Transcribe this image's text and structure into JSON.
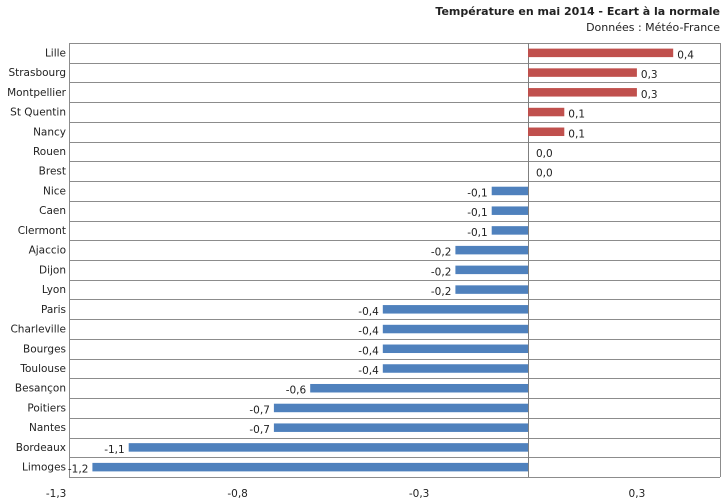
{
  "chart_data": {
    "type": "bar",
    "orientation": "horizontal",
    "title": "Température en mai 2014 - Ecart à la normale",
    "subtitle": "Données : Météo-France",
    "categories": [
      "Lille",
      "Strasbourg",
      "Montpellier",
      "St Quentin",
      "Nancy",
      "Rouen",
      "Brest",
      "Nice",
      "Caen",
      "Clermont",
      "Ajaccio",
      "Dijon",
      "Lyon",
      "Paris",
      "Charleville",
      "Bourges",
      "Toulouse",
      "Besançon",
      "Poitiers",
      "Nantes",
      "Bordeaux",
      "Limoges"
    ],
    "values": [
      0.4,
      0.3,
      0.3,
      0.1,
      0.1,
      0.0,
      0.0,
      -0.1,
      -0.1,
      -0.1,
      -0.2,
      -0.2,
      -0.2,
      -0.4,
      -0.4,
      -0.4,
      -0.4,
      -0.6,
      -0.7,
      -0.7,
      -1.1,
      -1.2
    ],
    "value_labels": [
      "0,4",
      "0,3",
      "0,3",
      "0,1",
      "0,1",
      "0,0",
      "0,0",
      "-0,1",
      "-0,1",
      "-0,1",
      "-0,2",
      "-0,2",
      "-0,2",
      "-0,4",
      "-0,4",
      "-0,4",
      "-0,4",
      "-0,6",
      "-0,7",
      "-0,7",
      "-1,1",
      "-1,2"
    ],
    "xlim": [
      -1.3,
      0.5
    ],
    "xticks": [
      -1.3,
      -0.8,
      -0.3,
      0.3
    ],
    "xtick_labels": [
      "-1,3",
      "-0,8",
      "-0,3",
      "0,3"
    ],
    "xlabel": "",
    "ylabel": "",
    "grid": true,
    "colors": {
      "positive": "#C0504D",
      "negative": "#4F81BD",
      "grid": "#8c8c8c",
      "text": "#222222"
    }
  }
}
